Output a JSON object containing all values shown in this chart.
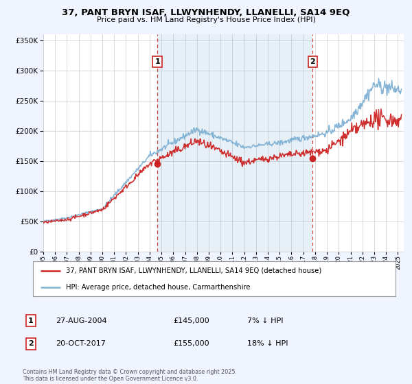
{
  "title": "37, PANT BRYN ISAF, LLWYNHENDY, LLANELLI, SA14 9EQ",
  "subtitle": "Price paid vs. HM Land Registry's House Price Index (HPI)",
  "bg_color": "#f0f4ff",
  "plot_bg_color": "#ffffff",
  "grid_color": "#cccccc",
  "hpi_color": "#7eb0d4",
  "price_color": "#cc2222",
  "marker_color": "#cc2222",
  "sale1_date": 2004.65,
  "sale1_price": 145000,
  "sale1_label": "1",
  "sale2_date": 2017.8,
  "sale2_price": 155000,
  "sale2_label": "2",
  "legend_line1": "37, PANT BRYN ISAF, LLWYNHENDY, LLANELLI, SA14 9EQ (detached house)",
  "legend_line2": "HPI: Average price, detached house, Carmarthenshire",
  "annotation1_date": "27-AUG-2004",
  "annotation1_price": "£145,000",
  "annotation1_hpi": "7% ↓ HPI",
  "annotation2_date": "20-OCT-2017",
  "annotation2_price": "£155,000",
  "annotation2_hpi": "18% ↓ HPI",
  "footer": "Contains HM Land Registry data © Crown copyright and database right 2025.\nThis data is licensed under the Open Government Licence v3.0.",
  "ylim": [
    0,
    360000
  ],
  "yticks": [
    0,
    50000,
    100000,
    150000,
    200000,
    250000,
    300000,
    350000
  ],
  "xlim_start": 1995.0,
  "xlim_end": 2025.5
}
